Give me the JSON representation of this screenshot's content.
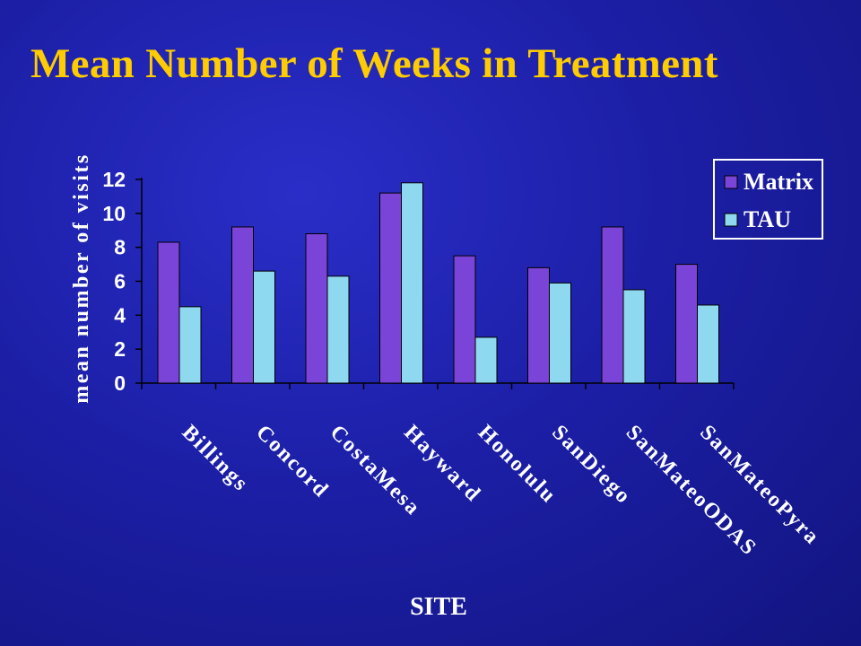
{
  "slide": {
    "title": "Mean Number of Weeks in Treatment"
  },
  "chart_data": {
    "type": "bar",
    "title": "",
    "xlabel": "SITE",
    "ylabel": "mean number of visits",
    "categories": [
      "Billings",
      "Concord",
      "CostaMesa",
      "Hayward",
      "Honolulu",
      "SanDiego",
      "SanMateoODAS",
      "SanMateoPyra"
    ],
    "series": [
      {
        "name": "Matrix",
        "values": [
          8.3,
          9.2,
          8.8,
          11.2,
          7.5,
          6.8,
          9.2,
          7.0
        ],
        "color": "#7b44d8"
      },
      {
        "name": "TAU",
        "values": [
          4.5,
          6.6,
          6.3,
          11.8,
          2.7,
          5.9,
          5.5,
          4.6
        ],
        "color": "#8ed8f0"
      }
    ],
    "ylim": [
      0,
      12
    ],
    "yticks": [
      0,
      2,
      4,
      6,
      8,
      10,
      12
    ],
    "grid": false,
    "legend_position": "top-right"
  }
}
